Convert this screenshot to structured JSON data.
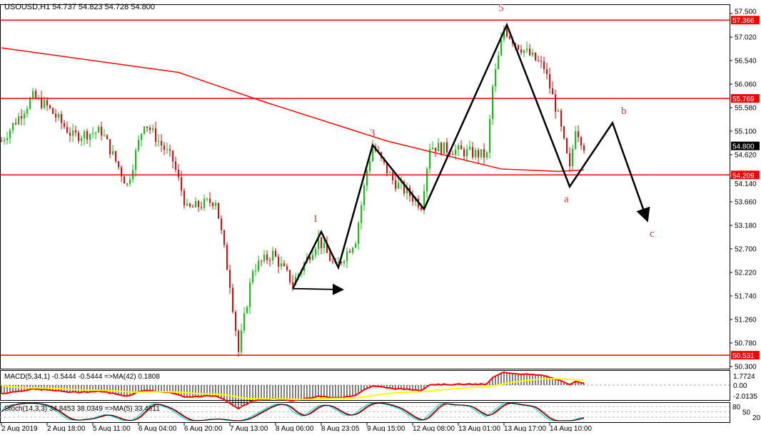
{
  "header": {
    "title": "USOUSD,H1  54.737 54.823 54.728 54.800"
  },
  "colors": {
    "bull": "#00d000",
    "bear": "#ff0000",
    "ma": "#ff0000",
    "level": "#ff0000",
    "arrow": "#000000",
    "macd_signal": "#ffff00",
    "stoch_main": "#00c8c8",
    "stoch_signal": "#ff0000"
  },
  "chart_data": {
    "type": "candlestick",
    "symbol": "USOUSD",
    "timeframe": "H1",
    "ylim": [
      50.3,
      57.5
    ],
    "price_ticks": [
      "57.500",
      "57.020",
      "56.540",
      "56.060",
      "55.580",
      "55.100",
      "54.620",
      "54.140",
      "53.660",
      "53.180",
      "52.700",
      "52.220",
      "51.740",
      "51.260",
      "50.780",
      "50.300"
    ],
    "current_price": "54.800",
    "levels": [
      "57.366",
      "55.769",
      "54.209",
      "50.531"
    ],
    "time_labels": [
      "2 Aug 2019",
      "2 Aug 18:00",
      "5 Aug 11:00",
      "6 Aug 04:00",
      "6 Aug 20:00",
      "7 Aug 13:00",
      "8 Aug 06:00",
      "8 Aug 23:05",
      "9 Aug 15:00",
      "12 Aug 08:00",
      "13 Aug 01:00",
      "13 Aug 17:00",
      "14 Aug 10:00"
    ],
    "bars_per_label": 16,
    "price_path": [
      [
        0,
        54.9
      ],
      [
        11,
        55.8
      ],
      [
        16,
        55.6
      ],
      [
        25,
        55.0
      ],
      [
        35,
        55.1
      ],
      [
        44,
        54.0
      ],
      [
        50,
        55.3
      ],
      [
        60,
        54.5
      ],
      [
        65,
        53.5
      ],
      [
        75,
        53.7
      ],
      [
        80,
        52.0
      ],
      [
        83,
        50.6
      ],
      [
        88,
        52.3
      ],
      [
        95,
        52.6
      ],
      [
        102,
        52.0
      ],
      [
        111,
        52.9
      ],
      [
        117,
        52.3
      ],
      [
        124,
        52.9
      ],
      [
        128,
        54.3
      ],
      [
        130,
        54.8
      ],
      [
        137,
        54.1
      ],
      [
        147,
        53.6
      ],
      [
        150,
        54.8
      ],
      [
        160,
        54.7
      ],
      [
        170,
        54.6
      ],
      [
        172,
        56.0
      ],
      [
        176,
        57.2
      ],
      [
        180,
        56.9
      ],
      [
        190,
        56.4
      ],
      [
        195,
        55.4
      ],
      [
        199,
        54.3
      ],
      [
        201,
        55.2
      ],
      [
        204,
        54.8
      ]
    ],
    "moving_average": [
      [
        0,
        56.8
      ],
      [
        62,
        56.3
      ],
      [
        92,
        55.7
      ],
      [
        135,
        54.9
      ],
      [
        175,
        54.33
      ],
      [
        195,
        54.28
      ],
      [
        204,
        54.31
      ]
    ],
    "wave_path": [
      [
        102,
        51.89
      ],
      [
        112,
        53.05
      ],
      [
        118,
        52.32
      ],
      [
        130,
        54.82
      ],
      [
        148,
        53.51
      ],
      [
        177,
        57.27
      ],
      [
        199,
        53.97
      ],
      [
        214,
        55.27
      ],
      [
        226,
        53.31
      ]
    ],
    "horizontal_arrow": [
      [
        102,
        51.89
      ],
      [
        119,
        51.87
      ]
    ],
    "wave_labels": [
      {
        "text": "1",
        "bar": 109,
        "price": 53.25
      },
      {
        "text": "3",
        "bar": 129,
        "price": 55.0
      },
      {
        "text": "5",
        "bar": 174,
        "price": 57.55
      },
      {
        "text": "a",
        "bar": 197,
        "price": 53.65
      },
      {
        "text": "b",
        "bar": 217,
        "price": 55.45
      },
      {
        "text": "c",
        "bar": 227,
        "price": 52.95
      }
    ],
    "macd": {
      "label": "MACD(5,34,1) -0.5444 -0.5444  =>MA(42) 0.1808",
      "ticks": [
        "1.7724",
        "0.00",
        "-2.0135"
      ]
    },
    "stoch": {
      "label": "Stoch(14,3,3) 34.8453 38.0349  =>MA(5) 33.4611",
      "ticks": [
        "80",
        "50",
        "20"
      ]
    }
  }
}
